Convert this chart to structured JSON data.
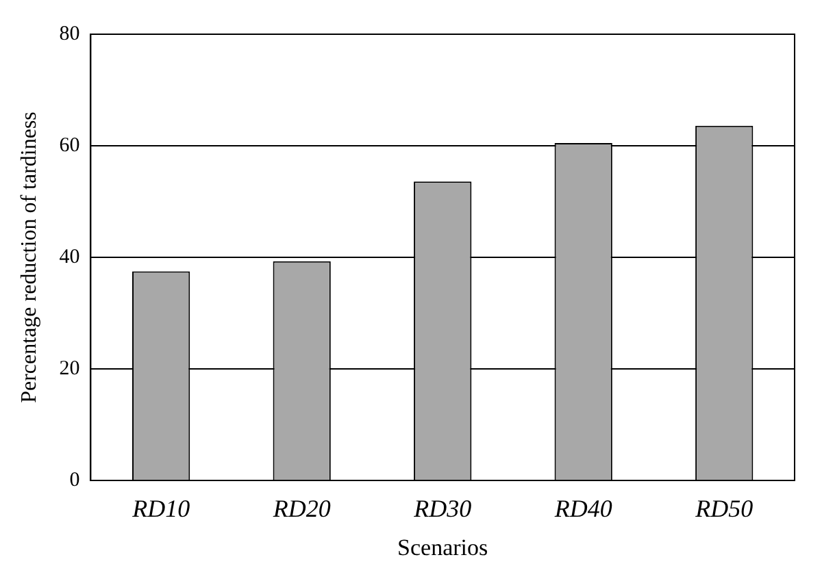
{
  "chart_data": {
    "type": "bar",
    "xlabel": "Scenarios",
    "ylabel": "Percentage reduction of tardiness",
    "categories": [
      "RD10",
      "RD20",
      "RD30",
      "RD40",
      "RD50"
    ],
    "values": [
      37.5,
      39.3,
      53.6,
      60.5,
      63.6
    ],
    "color": "#a8a8a8",
    "ylim": [
      0,
      80
    ],
    "yticks": [
      0,
      20,
      40,
      60,
      80
    ],
    "grid": "y"
  }
}
